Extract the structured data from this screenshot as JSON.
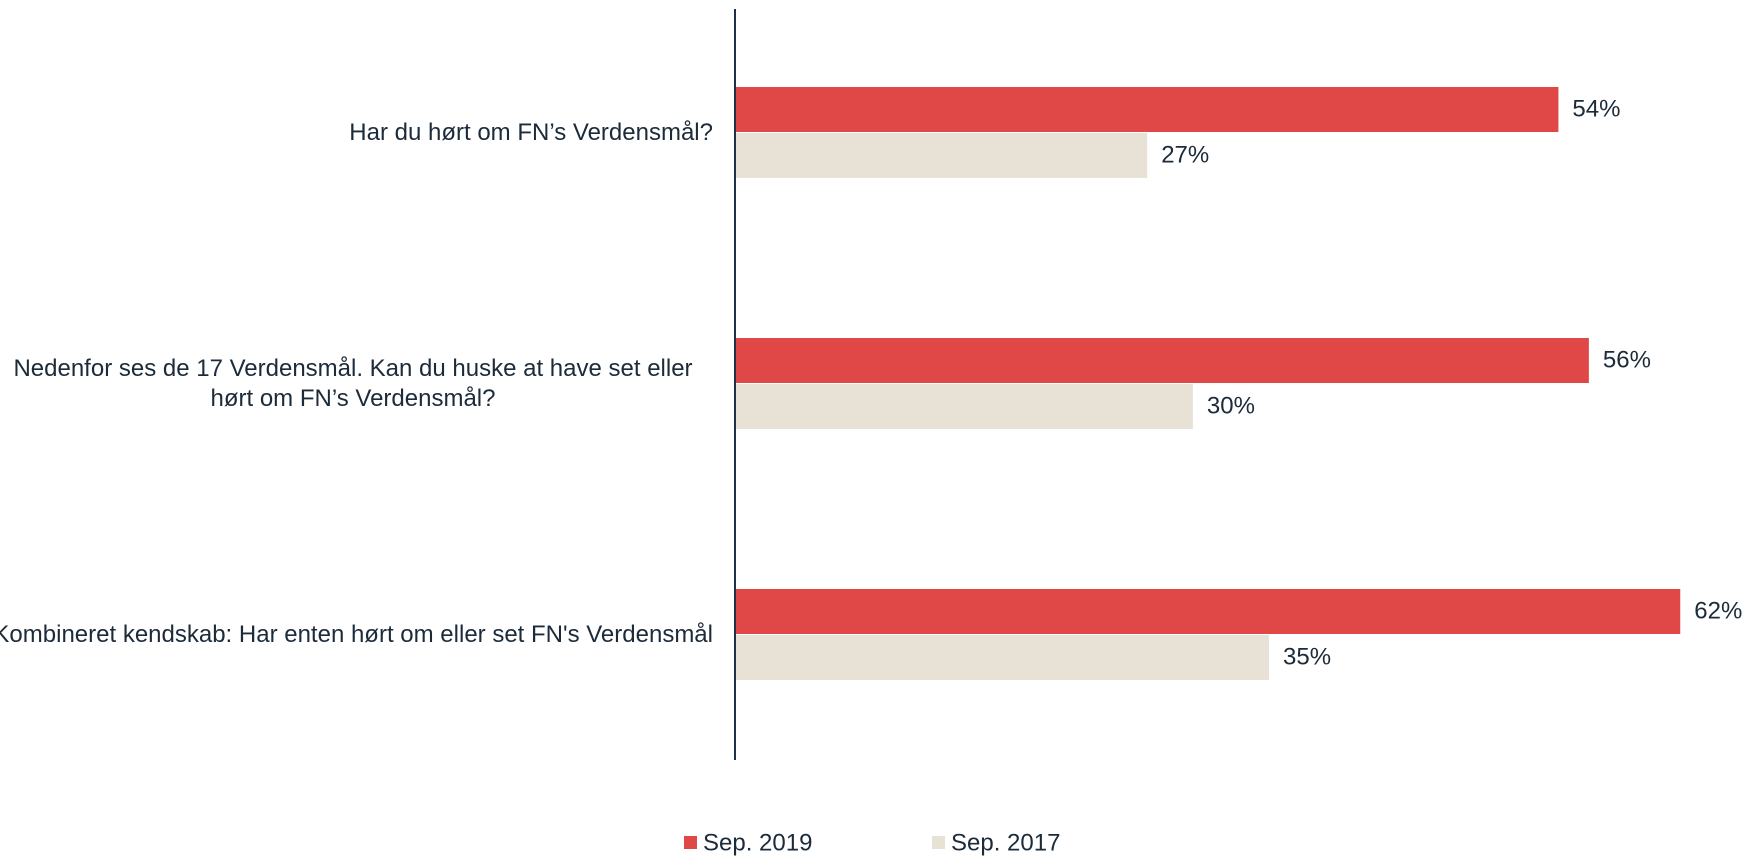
{
  "chart_data": {
    "type": "bar",
    "orientation": "horizontal",
    "categories": [
      "Har du hørt om FN’s Verdensmål?",
      "Nedenfor ses de 17 Verdensmål. Kan du huske at have set eller hørt om FN’s Verdensmål?",
      "Kombineret kendskab: Har enten hørt om eller set FN's Verdensmål"
    ],
    "series": [
      {
        "name": "Sep. 2019",
        "color": "#e04848",
        "values": [
          54,
          56,
          62
        ],
        "value_labels": [
          "54%",
          "56%",
          "62%"
        ]
      },
      {
        "name": "Sep. 2017",
        "color": "#e8e2d6",
        "values": [
          27,
          30,
          35
        ],
        "value_labels": [
          "27%",
          "30%",
          "35%"
        ]
      }
    ],
    "legend": "bottom"
  }
}
